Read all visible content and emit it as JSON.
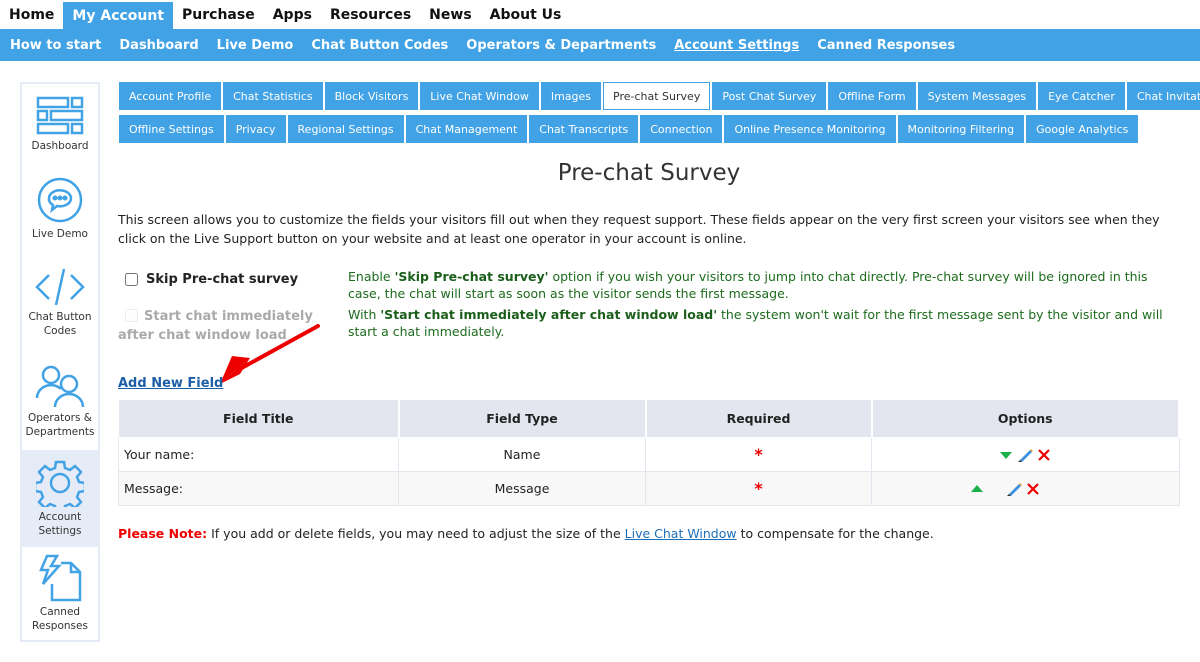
{
  "topnav": [
    "Home",
    "My Account",
    "Purchase",
    "Apps",
    "Resources",
    "News",
    "About Us"
  ],
  "topnav_active": 1,
  "subnav": [
    "How to start",
    "Dashboard",
    "Live Demo",
    "Chat Button Codes",
    "Operators & Departments",
    "Account Settings",
    "Canned Responses"
  ],
  "subnav_active": 5,
  "sidebar": [
    {
      "label": "Dashboard",
      "icon": "dashboard-icon"
    },
    {
      "label": "Live Demo",
      "icon": "chat-bubble-icon"
    },
    {
      "label": "Chat Button Codes",
      "icon": "code-icon"
    },
    {
      "label": "Operators & Departments",
      "icon": "users-icon"
    },
    {
      "label": "Account Settings",
      "icon": "gear-icon",
      "active": true
    },
    {
      "label": "Canned Responses",
      "icon": "canned-responses-icon"
    }
  ],
  "tabs_row1": [
    "Account Profile",
    "Chat Statistics",
    "Block Visitors",
    "Live Chat Window",
    "Images",
    "Pre-chat Survey",
    "Post Chat Survey",
    "Offline Form",
    "System Messages",
    "Eye Catcher",
    "Chat Invitation"
  ],
  "tabs_row2": [
    "Offline Settings",
    "Privacy",
    "Regional Settings",
    "Chat Management",
    "Chat Transcripts",
    "Connection",
    "Online Presence Monitoring",
    "Monitoring Filtering",
    "Google Analytics"
  ],
  "active_tab": "Pre-chat Survey",
  "page": {
    "title": "Pre-chat Survey",
    "intro": "This screen allows you to customize the fields your visitors fill out when they request support. These fields appear on the very first screen your visitors see when they click on the Live Support button on your website and at least one operator in your account is online.",
    "skip_label": "Skip Pre-chat survey",
    "skip_checked": false,
    "skip_desc_pre": "Enable ",
    "skip_desc_bold": "'Skip Pre-chat survey'",
    "skip_desc_post": " option if you wish your visitors to jump into chat directly. Pre-chat survey will be ignored in this case, the chat will start as soon as the visitor sends the first message.",
    "start_label": "Start chat immediately after chat window load",
    "start_checked": false,
    "start_disabled": true,
    "start_desc_pre": "With ",
    "start_desc_bold": "'Start chat immediately after chat window load'",
    "start_desc_post": " the system won't wait for the first message sent by the visitor and will start a chat immediately.",
    "add_field": "Add New Field"
  },
  "table": {
    "headers": [
      "Field Title",
      "Field Type",
      "Required",
      "Options"
    ],
    "rows": [
      {
        "title": "Your name:",
        "type": "Name",
        "required": "*"
      },
      {
        "title": "Message:",
        "type": "Message",
        "required": "*"
      }
    ]
  },
  "note": {
    "label": "Please Note:",
    "pre": " If you add or delete fields, you may need to adjust the size of the ",
    "link": "Live Chat Window",
    "post": " to compensate for the change."
  },
  "colors": {
    "accent": "#41a2e6",
    "required": "#ee0000",
    "desc_green": "#1d6b1d"
  }
}
